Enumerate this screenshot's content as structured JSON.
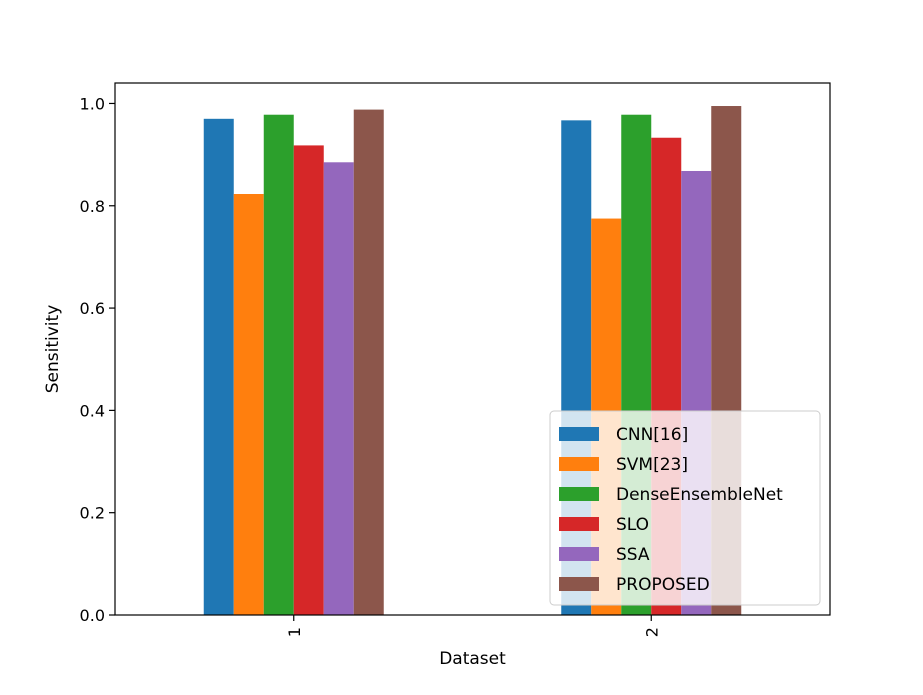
{
  "chart_data": {
    "type": "bar",
    "title": "",
    "xlabel": "Dataset",
    "ylabel": "Sensitivity",
    "categories": [
      "1",
      "2"
    ],
    "ylim": [
      0,
      1.04
    ],
    "yticks": [
      "0.0",
      "0.2",
      "0.4",
      "0.6",
      "0.8",
      "1.0"
    ],
    "legend_position": "lower-right",
    "grid": false,
    "series": [
      {
        "name": "CNN[16]",
        "color": "#1f77b4",
        "values": [
          0.97,
          0.967
        ]
      },
      {
        "name": "SVM[23]",
        "color": "#ff7f0e",
        "values": [
          0.823,
          0.775
        ]
      },
      {
        "name": "DenseEnsembleNet",
        "color": "#2ca02c",
        "values": [
          0.978,
          0.978
        ]
      },
      {
        "name": "SLO",
        "color": "#d62728",
        "values": [
          0.918,
          0.933
        ]
      },
      {
        "name": "SSA",
        "color": "#9467bd",
        "values": [
          0.885,
          0.868
        ]
      },
      {
        "name": "PROPOSED",
        "color": "#8c564b",
        "values": [
          0.988,
          0.995
        ]
      }
    ]
  }
}
